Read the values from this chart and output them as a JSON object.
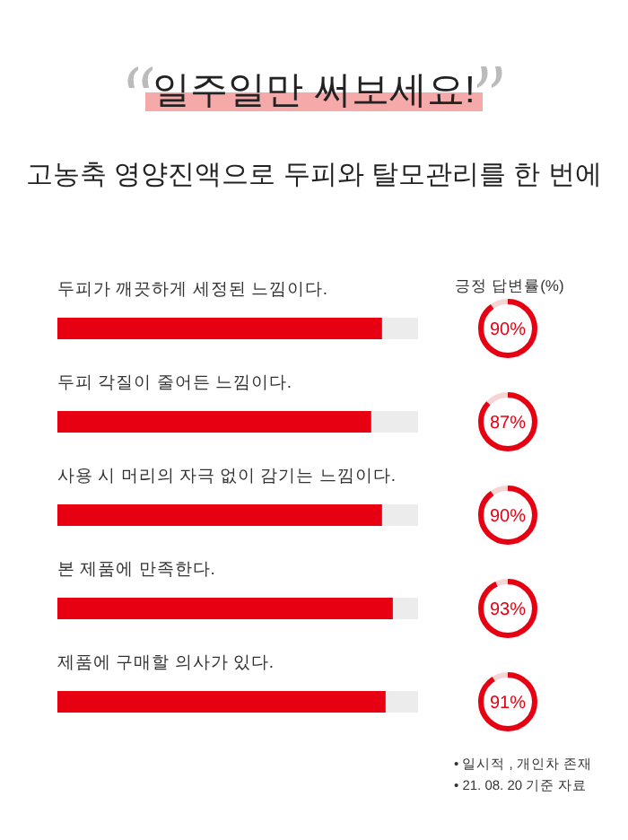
{
  "chart_data": {
    "type": "bar",
    "orientation": "horizontal",
    "title": "일주일만 써보세요!",
    "subtitle": "고농축 영양진액으로 두피와 탈모관리를 한 번에",
    "categories": [
      "두피가 깨끗하게 세정된 느낌이다.",
      "두피 각질이 줄어든 느낌이다.",
      "사용 시 머리의 자극 없이 감기는 느낌이다.",
      "본 제품에 만족한다.",
      "제품에 구매할 의사가 있다."
    ],
    "values": [
      90,
      87,
      90,
      93,
      91
    ],
    "color": "#e60012",
    "value_labels": [
      "90%",
      "87%",
      "90%",
      "93%",
      "91%"
    ],
    "xlim": [
      0,
      100
    ],
    "tick_labels": "y",
    "annotations": [
      "긍정 답변률(%)",
      "• 일시적 , 개인차 존재",
      "• 21. 08. 20 기준 자료"
    ]
  }
}
